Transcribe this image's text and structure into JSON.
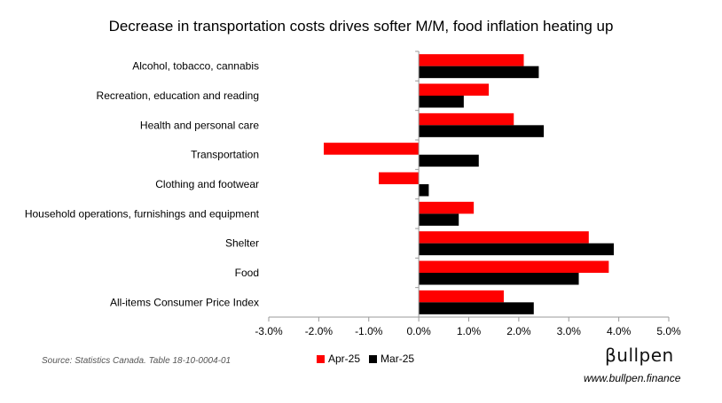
{
  "chart_data": {
    "type": "bar",
    "orientation": "horizontal",
    "title": "Decrease in transportation costs drives softer M/M, food inflation heating up",
    "xlabel": "",
    "ylabel": "",
    "categories": [
      "Alcohol, tobacco, cannabis",
      "Recreation, education and reading",
      "Health and personal care",
      "Transportation",
      "Clothing and footwear",
      "Household operations, furnishings and equipment",
      "Shelter",
      "Food",
      "All-items Consumer Price Index"
    ],
    "series": [
      {
        "name": "Apr-25",
        "color": "#ff0000",
        "values": [
          2.1,
          1.4,
          1.9,
          -1.9,
          -0.8,
          1.1,
          3.4,
          3.8,
          1.7
        ]
      },
      {
        "name": "Mar-25",
        "color": "#000000",
        "values": [
          2.4,
          0.9,
          2.5,
          1.2,
          0.2,
          0.8,
          3.9,
          3.2,
          2.3
        ]
      }
    ],
    "xlim": [
      -3.0,
      5.0
    ],
    "xticks": [
      -3.0,
      -2.0,
      -1.0,
      0.0,
      1.0,
      2.0,
      3.0,
      4.0,
      5.0
    ],
    "xtick_labels": [
      "-3.0%",
      "-2.0%",
      "-1.0%",
      "0.0%",
      "1.0%",
      "2.0%",
      "3.0%",
      "4.0%",
      "5.0%"
    ],
    "grid": false,
    "legend_position": "bottom"
  },
  "footer": {
    "source": "Source: Statistics Canada. Table 18-10-0004-01",
    "brand": "βullpen",
    "url": "www.bullpen.finance"
  }
}
